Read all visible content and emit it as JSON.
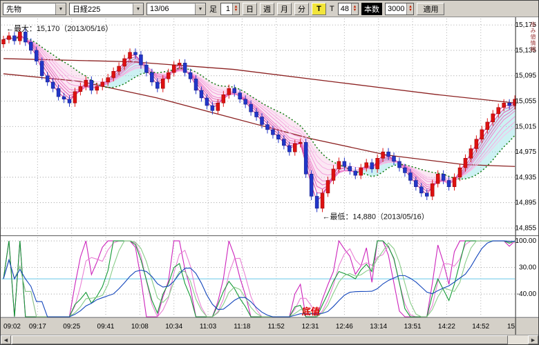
{
  "toolbar": {
    "market": "先物",
    "symbol": "日経225",
    "contract": "13/06",
    "period_label": "足",
    "minute_value": "1",
    "period_buttons": [
      "日",
      "週",
      "月",
      "分"
    ],
    "tick_toggle": "T",
    "tick_label": "T",
    "tick_count": "48",
    "count_label": "本数",
    "bar_count": "3000",
    "apply_label": "適用"
  },
  "icons": {
    "dropdown": "▼",
    "spin_up": "▲",
    "spin_down": "▼",
    "scroll_left": "◀",
    "scroll_right": "▶"
  },
  "side_note": "歩み値情報",
  "chart_data": {
    "type": "candlestick",
    "instrument": "先物 日経225 13/06",
    "price_range": [
      15185,
      14845
    ],
    "price_axis_labels": [
      "15,175",
      "15,135",
      "15,095",
      "15,055",
      "15,015",
      "14,975",
      "14,935",
      "14,895",
      "14,855"
    ],
    "time_labels": [
      "09:02",
      "09:17",
      "09:25",
      "09:41",
      "10:08",
      "10:34",
      "11:03",
      "11:18",
      "11:52",
      "12:31",
      "12:46",
      "13:14",
      "13:51",
      "14:22",
      "14:52",
      "15"
    ],
    "first_open": 15145,
    "wick": 6,
    "closes": [
      15152,
      15158,
      15150,
      15164,
      15148,
      15135,
      15118,
      15095,
      15085,
      15075,
      15062,
      15058,
      15052,
      15070,
      15078,
      15088,
      15072,
      15078,
      15085,
      15092,
      15102,
      15110,
      15122,
      15132,
      15128,
      15112,
      15100,
      15085,
      15075,
      15090,
      15100,
      15112,
      15115,
      15100,
      15090,
      15072,
      15060,
      15048,
      15040,
      15052,
      15065,
      15075,
      15068,
      15058,
      15050,
      15038,
      15030,
      15018,
      15010,
      15002,
      14995,
      14985,
      14975,
      14988,
      14990,
      14940,
      14905,
      14886,
      14910,
      14930,
      14948,
      14960,
      14952,
      14945,
      14938,
      14950,
      14958,
      14948,
      14965,
      14975,
      14968,
      14960,
      14950,
      14942,
      14930,
      14920,
      14910,
      14905,
      14925,
      14940,
      14930,
      14920,
      14935,
      14950,
      14965,
      14980,
      14995,
      15010,
      15022,
      15035,
      15045,
      15052,
      15048,
      15058
    ],
    "colors": {
      "up_candle": "#dd1111",
      "down_candle": "#2236c8",
      "ribbon": [
        "#d23399",
        "#d947a6",
        "#e05bb3",
        "#e76fc0",
        "#ee84cd",
        "#f298d8",
        "#f6ace1",
        "#f9c0ea"
      ],
      "green_ma": "#0b7a0b",
      "long_ma": "#8b2020",
      "zero_line": "#66c8e8"
    },
    "annotations": {
      "max_label": "←最大：15,170（2013/05/16）",
      "max_value": 15170,
      "min_label": "←最低：14,880（2013/05/16）",
      "min_value": 14880,
      "min_index": 57,
      "bottom_label": "底値"
    },
    "overlays": {
      "green_ma_period": 13,
      "ribbon_periods": [
        2,
        3,
        4,
        5,
        6,
        8,
        10,
        12
      ],
      "ma_long_a": [
        [
          0,
          15122
        ],
        [
          0.25,
          15117
        ],
        [
          0.45,
          15105
        ],
        [
          0.65,
          15085
        ],
        [
          0.85,
          15065
        ],
        [
          1,
          15052
        ]
      ],
      "ma_long_b": [
        [
          0,
          15098
        ],
        [
          0.15,
          15086
        ],
        [
          0.3,
          15060
        ],
        [
          0.45,
          15028
        ],
        [
          0.6,
          14996
        ],
        [
          0.75,
          14970
        ],
        [
          0.9,
          14955
        ],
        [
          1,
          14952
        ]
      ]
    },
    "oscillator": {
      "range": [
        110,
        -100
      ],
      "axis_labels": [
        "100.00",
        "30.00",
        "-40.00"
      ],
      "axis_values": [
        100,
        30,
        -40
      ],
      "zero_line_value": 0,
      "series": [
        {
          "name": "stoch-fast",
          "period": 7,
          "color": "#cc22bb"
        },
        {
          "name": "stoch-fast-signal",
          "period": 7,
          "smooth": 3,
          "color": "#e87fd4"
        },
        {
          "name": "stoch-mid",
          "period": 14,
          "color": "#119933"
        },
        {
          "name": "stoch-mid-signal",
          "period": 14,
          "smooth": 3,
          "color": "#88cc88"
        },
        {
          "name": "stoch-slow",
          "period": 25,
          "smooth": 5,
          "color": "#1144bb"
        }
      ]
    }
  },
  "scrollbar": {
    "left_arrow": "◀",
    "right_arrow": "▶"
  }
}
